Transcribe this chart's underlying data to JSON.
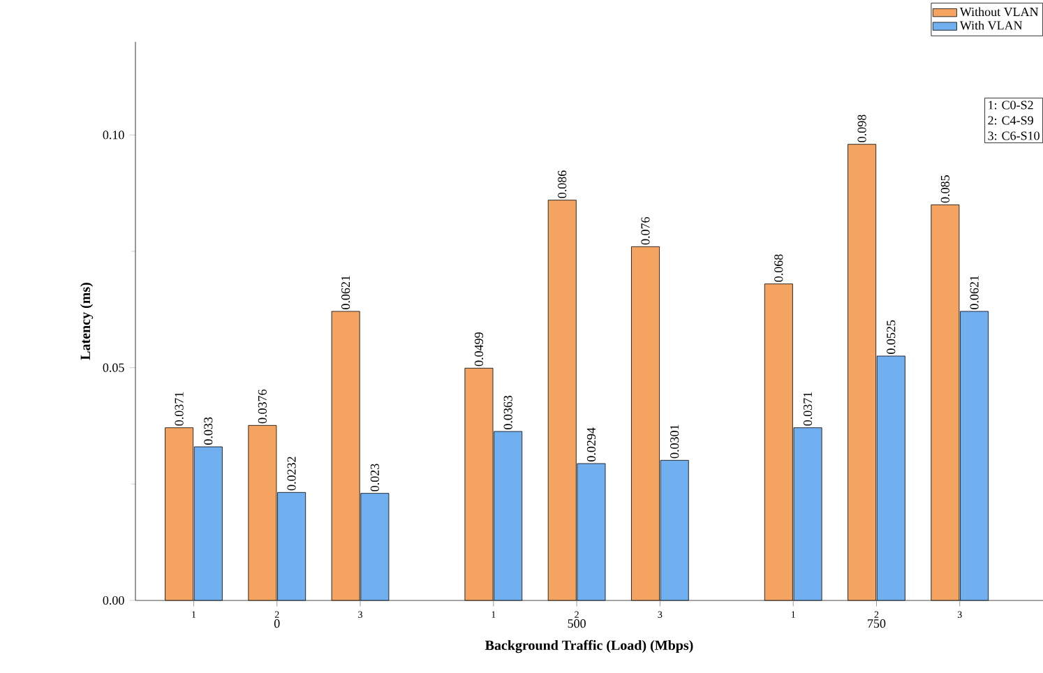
{
  "chart_data": {
    "type": "bar",
    "xlabel": "Background Traffic (Load) (Mbps)",
    "ylabel": "Latency (ms)",
    "categories": [
      "1",
      "2",
      "3",
      "1",
      "2",
      "3",
      "1",
      "2",
      "3"
    ],
    "series": [
      {
        "name": "Without VLAN",
        "color": "#f4a460",
        "values": [
          0.0371,
          0.0376,
          0.0621,
          0.0499,
          0.086,
          0.076,
          0.068,
          0.098,
          0.085
        ]
      },
      {
        "name": "With VLAN",
        "color": "#70b0f0",
        "values": [
          0.033,
          0.0232,
          0.023,
          0.0363,
          0.0294,
          0.0301,
          0.0371,
          0.0525,
          0.0621
        ]
      }
    ],
    "ylim": [
      0,
      0.12
    ],
    "yticks": [
      {
        "value": 0,
        "label": "0.00"
      },
      {
        "value": 0.05,
        "label": "0.05"
      },
      {
        "value": 0.1,
        "label": "0.10"
      }
    ],
    "data_labels": true,
    "legend": "top right",
    "annotations": [
      "0",
      "500",
      "750",
      "1: C0-S2",
      "2: C4-S9",
      "3: C6-S10"
    ]
  }
}
